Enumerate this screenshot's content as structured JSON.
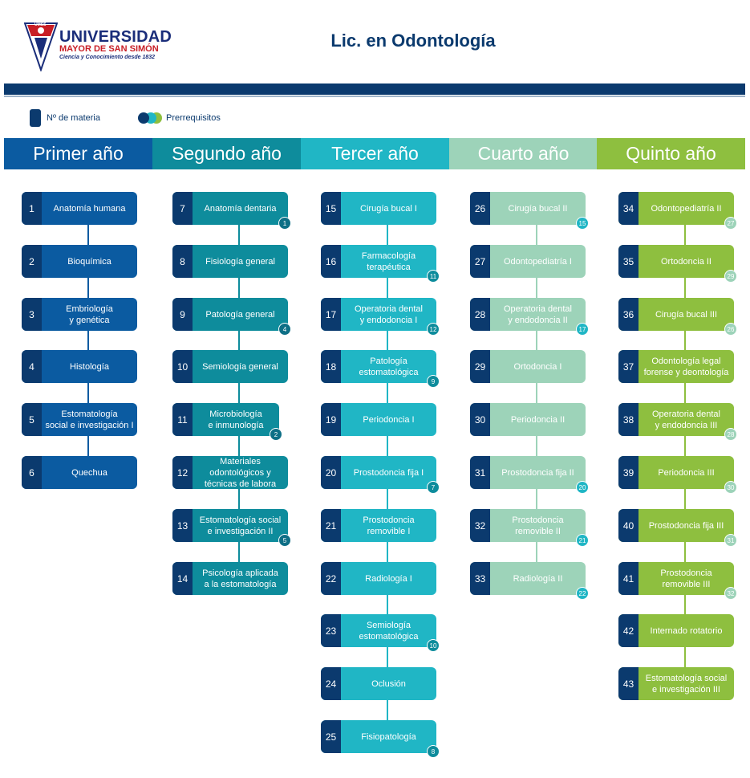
{
  "header": {
    "logo_text_top": "UMSS",
    "logo_text1": "UNIVERSIDAD",
    "logo_text2": "MAYOR DE SAN SIMÓN",
    "logo_text3": "Ciencia y Conocimiento desde 1832",
    "title": "Lic. en Odontología"
  },
  "legend": {
    "number_label": "Nº de materia",
    "prereq_label": "Prerrequisitos"
  },
  "colors": {
    "navy": "#0b3a6e",
    "y1": "#0b5ba1",
    "y2": "#0e8c9c",
    "y3": "#20b6c5",
    "y4": "#9dd3b9",
    "y5": "#8ebf3f"
  },
  "years": [
    {
      "title": "Primer año",
      "courses": [
        {
          "num": "1",
          "name": "Anatomía humana",
          "pre": ""
        },
        {
          "num": "2",
          "name": "Bioquímica",
          "pre": ""
        },
        {
          "num": "3",
          "name": "Embriología\ny genética",
          "pre": ""
        },
        {
          "num": "4",
          "name": "Histología",
          "pre": ""
        },
        {
          "num": "5",
          "name": "Estomatología\nsocial e investigación I",
          "pre": ""
        },
        {
          "num": "6",
          "name": "Quechua",
          "pre": ""
        }
      ]
    },
    {
      "title": "Segundo año",
      "courses": [
        {
          "num": "7",
          "name": "Anatomía dentaria",
          "pre": "1"
        },
        {
          "num": "8",
          "name": "Fisiología general",
          "pre": ""
        },
        {
          "num": "9",
          "name": "Patología general",
          "pre": "4"
        },
        {
          "num": "10",
          "name": "Semiología general",
          "pre": ""
        },
        {
          "num": "11",
          "name": "Microbiología\ne inmunología",
          "pre": "2"
        },
        {
          "num": "12",
          "name": "Materiales\nodontológicos y\ntécnicas de labora",
          "pre": ""
        },
        {
          "num": "13",
          "name": "Estomatología social\ne investigación II",
          "pre": "5"
        },
        {
          "num": "14",
          "name": "Psicología aplicada\na la estomatología",
          "pre": ""
        }
      ]
    },
    {
      "title": "Tercer año",
      "courses": [
        {
          "num": "15",
          "name": "Cirugía bucal I",
          "pre": ""
        },
        {
          "num": "16",
          "name": "Farmacología\nterapéutica",
          "pre": "11"
        },
        {
          "num": "17",
          "name": "Operatoria dental\ny endodoncia I",
          "pre": "12"
        },
        {
          "num": "18",
          "name": "Patología\nestomatológica",
          "pre": "9"
        },
        {
          "num": "19",
          "name": "Periodoncia I",
          "pre": ""
        },
        {
          "num": "20",
          "name": "Prostodoncia fija I",
          "pre": "7"
        },
        {
          "num": "21",
          "name": "Prostodoncia\nremovible I",
          "pre": ""
        },
        {
          "num": "22",
          "name": "Radiología I",
          "pre": ""
        },
        {
          "num": "23",
          "name": "Semiología\nestomatológica",
          "pre": "10"
        },
        {
          "num": "24",
          "name": "Oclusión",
          "pre": ""
        },
        {
          "num": "25",
          "name": "Fisiopatología",
          "pre": "8"
        }
      ]
    },
    {
      "title": "Cuarto año",
      "courses": [
        {
          "num": "26",
          "name": "Cirugía bucal II",
          "pre": "15"
        },
        {
          "num": "27",
          "name": "Odontopediatría I",
          "pre": ""
        },
        {
          "num": "28",
          "name": "Operatoria dental\ny endodoncia II",
          "pre": "17"
        },
        {
          "num": "29",
          "name": "Ortodoncia I",
          "pre": ""
        },
        {
          "num": "30",
          "name": "Periodoncia II",
          "pre": ""
        },
        {
          "num": "31",
          "name": "Prostodoncia fija II",
          "pre": "20"
        },
        {
          "num": "32",
          "name": "Prostodoncia\nremovible II",
          "pre": "21"
        },
        {
          "num": "33",
          "name": "Radiología II",
          "pre": "22"
        }
      ]
    },
    {
      "title": "Quinto año",
      "courses": [
        {
          "num": "34",
          "name": "Odontopediatría II",
          "pre": "27"
        },
        {
          "num": "35",
          "name": "Ortodoncia II",
          "pre": "29"
        },
        {
          "num": "36",
          "name": "Cirugía bucal III",
          "pre": "26"
        },
        {
          "num": "37",
          "name": "Odontología legal\nforense y deontología",
          "pre": ""
        },
        {
          "num": "38",
          "name": "Operatoria dental\ny endodoncia III",
          "pre": "28"
        },
        {
          "num": "39",
          "name": "Periodoncia III",
          "pre": "30"
        },
        {
          "num": "40",
          "name": "Prostodoncia fija III",
          "pre": "31"
        },
        {
          "num": "41",
          "name": "Prostodoncia\nremovible III",
          "pre": "32"
        },
        {
          "num": "42",
          "name": "Internado rotatorio",
          "pre": ""
        },
        {
          "num": "43",
          "name": "Estomatología social\ne investigación III",
          "pre": ""
        }
      ]
    }
  ]
}
